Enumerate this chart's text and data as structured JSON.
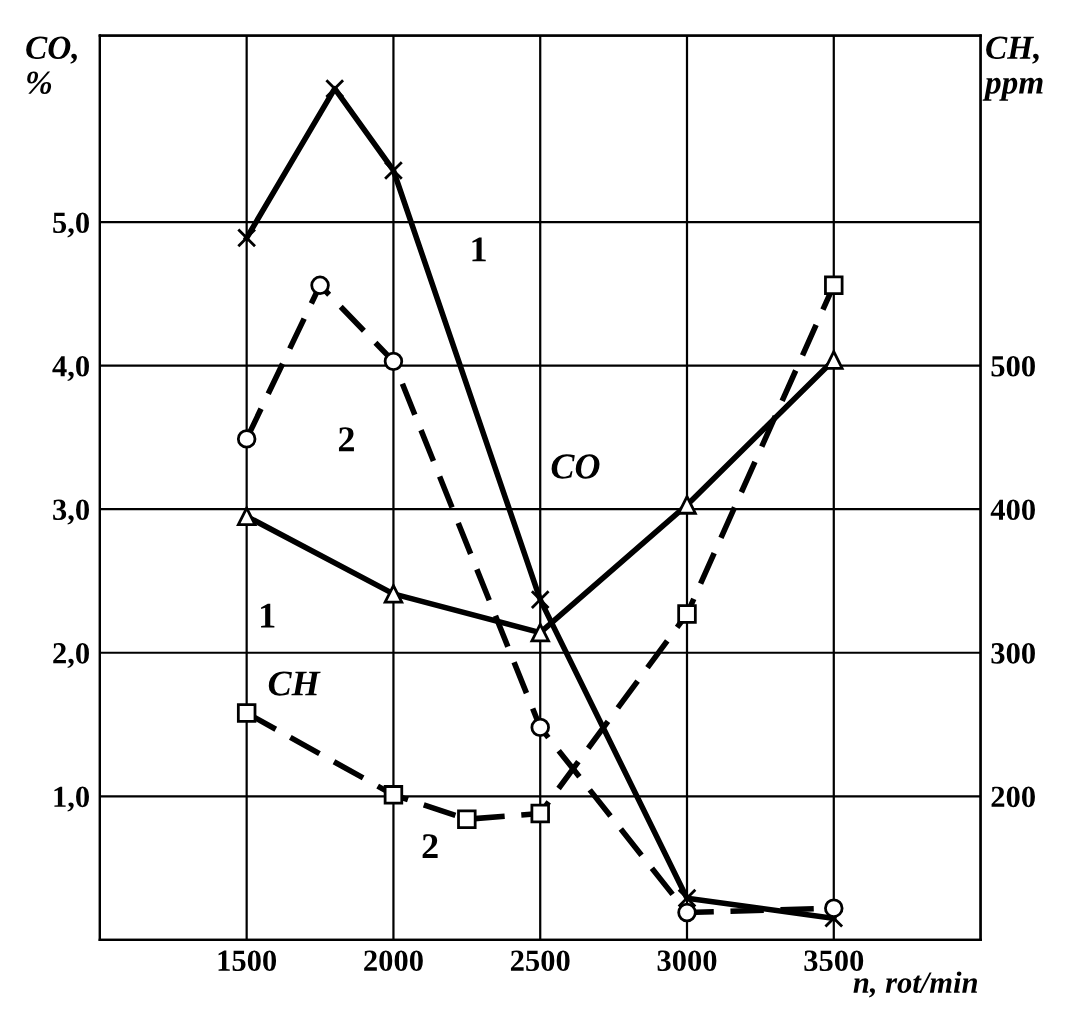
{
  "chart_data": {
    "type": "line",
    "xlabel": "n, rot/min",
    "ylabel": "CO,\n%",
    "y2label": "CH,\nppm",
    "xlim": [
      1000,
      4000
    ],
    "xticks": [
      1500,
      2000,
      2500,
      3000,
      3500
    ],
    "ylim": [
      0,
      6.3
    ],
    "yticks": [
      {
        "value": 1,
        "label": "1,0"
      },
      {
        "value": 2,
        "label": "2,0"
      },
      {
        "value": 3,
        "label": "3,0"
      },
      {
        "value": 4,
        "label": "4,0"
      },
      {
        "value": 5,
        "label": "5,0"
      }
    ],
    "y2lim": [
      100,
      730
    ],
    "y2ticks": [
      200,
      300,
      400,
      500
    ],
    "grid": true,
    "series": [
      {
        "color": "#000000",
        "marker": "cross",
        "line_style": "solid",
        "x": [
          1500,
          1800,
          2000,
          2500,
          3000,
          3500
        ],
        "values": [
          4.89,
          5.93,
          5.36,
          2.37,
          0.29,
          0.15
        ]
      },
      {
        "color": "#000000",
        "marker": "circle",
        "line_style": "dashed",
        "x": [
          1500,
          1750,
          2000,
          2500,
          3000,
          3500
        ],
        "values": [
          3.49,
          4.56,
          4.03,
          1.48,
          0.19,
          0.22
        ]
      },
      {
        "color": "#000000",
        "marker": "triangle",
        "line_style": "solid",
        "axis": "y2",
        "x": [
          1500,
          2000,
          2500,
          3000,
          3500
        ],
        "values": [
          395,
          341,
          314,
          403,
          504
        ]
      },
      {
        "color": "#000000",
        "marker": "square",
        "line_style": "dashed",
        "axis": "y2",
        "x": [
          1500,
          2000,
          2250,
          2500,
          3000,
          3500
        ],
        "values": [
          258,
          201,
          184,
          188,
          327,
          556
        ]
      }
    ],
    "annotations": [
      "1",
      "2",
      "CO",
      "1",
      "CH",
      "2"
    ]
  }
}
